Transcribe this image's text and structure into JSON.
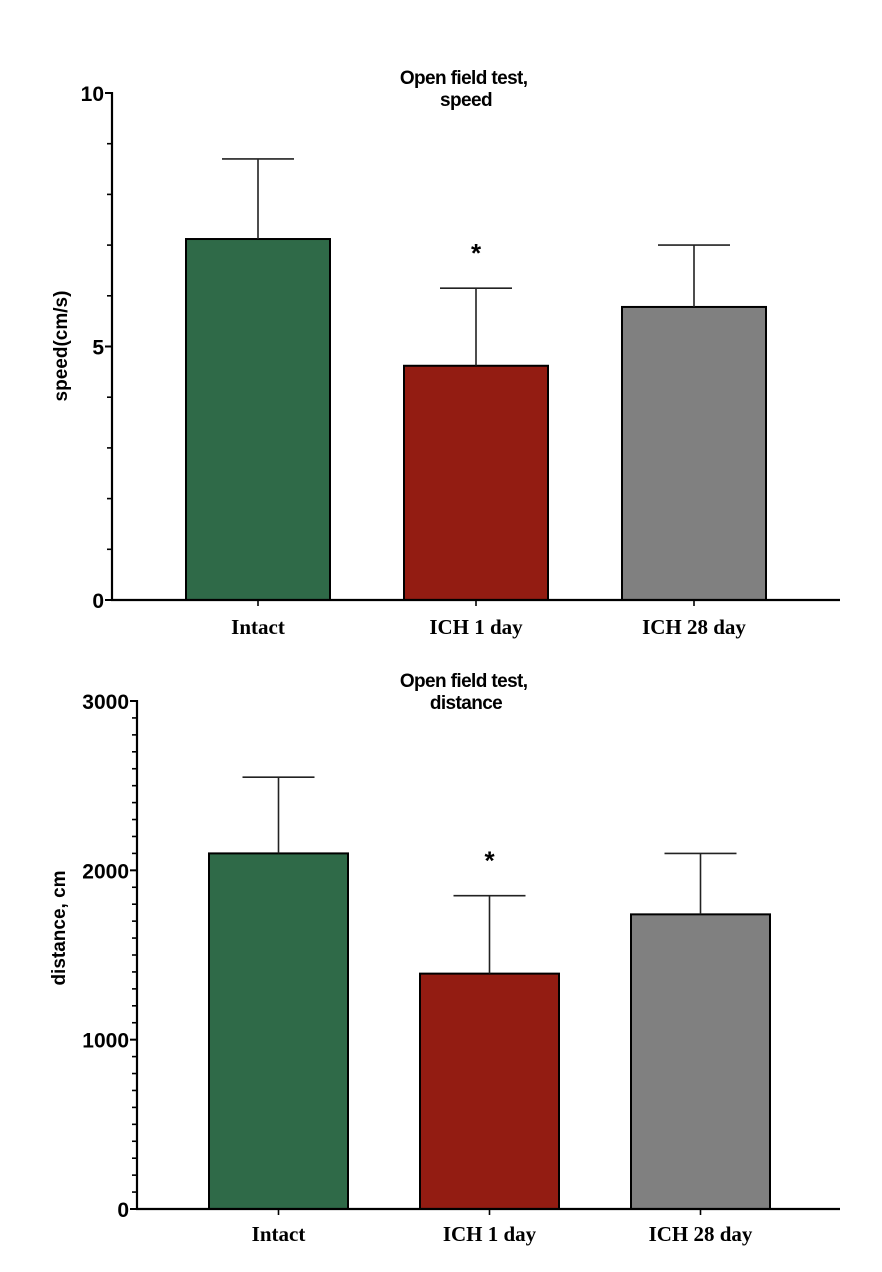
{
  "chart_data": [
    {
      "type": "bar",
      "title": "Open field test,\nspeed",
      "title_lines": [
        "Open field test,",
        "speed"
      ],
      "xlabel": "",
      "ylabel": "speed(cm/s)",
      "ylim": [
        0,
        10
      ],
      "major_ticks": [
        0,
        5,
        10
      ],
      "tick_labels": [
        "0",
        "5",
        "10"
      ],
      "minor_tick_step": 1,
      "grid": false,
      "categories": [
        "Intact",
        "ICH 1 day",
        "ICH 28 day"
      ],
      "values": [
        7.12,
        4.62,
        5.78
      ],
      "error_upper": [
        8.7,
        6.15,
        7.0
      ],
      "colors": [
        "#2f6a48",
        "#931c12",
        "#808080"
      ],
      "annotations": [
        {
          "category": "ICH 1 day",
          "text": "*"
        }
      ]
    },
    {
      "type": "bar",
      "title": "Open field test,\ndistance",
      "title_lines": [
        "Open field test,",
        "distance"
      ],
      "xlabel": "",
      "ylabel": "distance, cm",
      "ylim": [
        0,
        3000
      ],
      "major_ticks": [
        0,
        1000,
        2000,
        3000
      ],
      "tick_labels": [
        "0",
        "1000",
        "2000",
        "3000"
      ],
      "minor_tick_step": 100,
      "grid": false,
      "categories": [
        "Intact",
        "ICH 1 day",
        "ICH 28 day"
      ],
      "values": [
        2100,
        1390,
        1740
      ],
      "error_upper": [
        2550,
        1850,
        2100
      ],
      "colors": [
        "#2f6a48",
        "#931c12",
        "#808080"
      ],
      "annotations": [
        {
          "category": "ICH 1 day",
          "text": "*"
        }
      ]
    }
  ]
}
